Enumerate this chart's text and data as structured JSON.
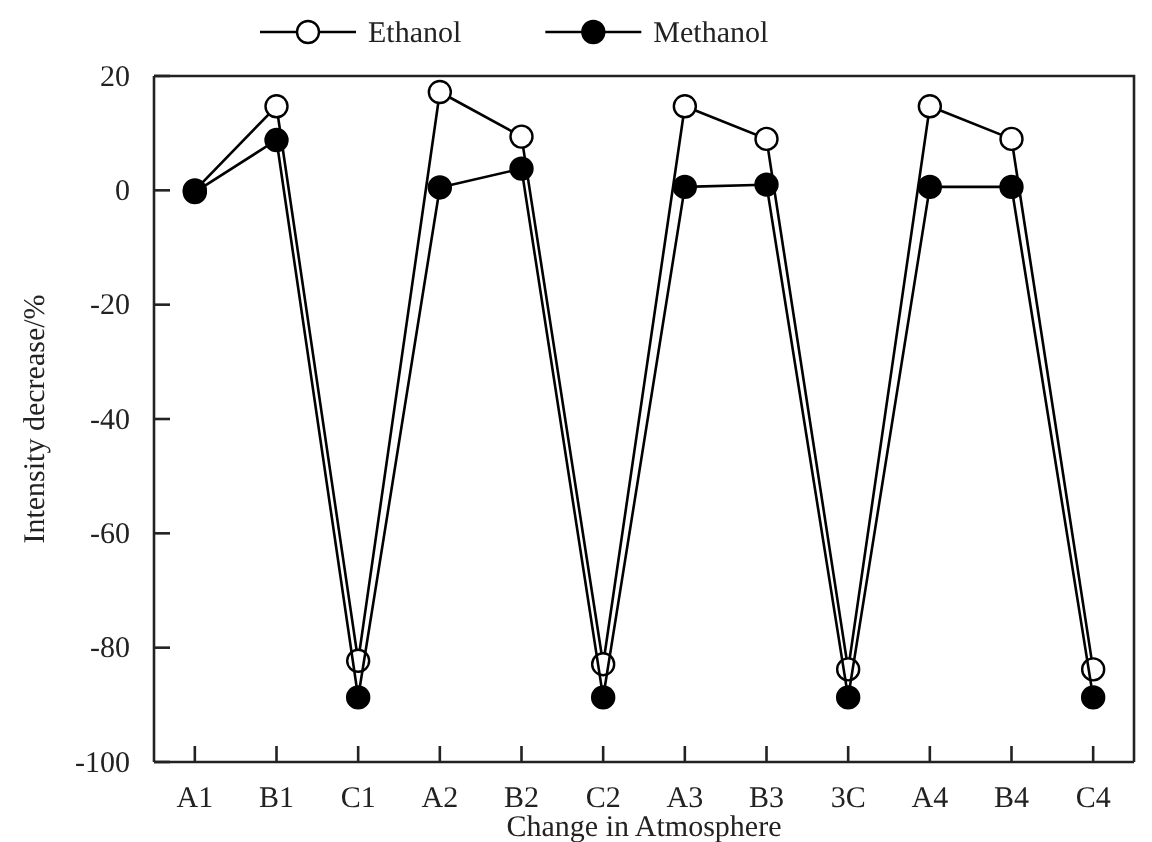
{
  "chart_data": {
    "type": "line",
    "xlabel": "Change in Atmosphere",
    "ylabel": "Intensity decrease/%",
    "categories": [
      "A1",
      "B1",
      "C1",
      "A2",
      "B2",
      "C2",
      "A3",
      "B3",
      "3C",
      "A4",
      "B4",
      "C4"
    ],
    "series": [
      {
        "name": "Ethanol",
        "color": "#000000",
        "values": [
          0,
          14.7,
          -82.3,
          17.2,
          9.4,
          -82.9,
          14.7,
          9,
          -83.8,
          14.7,
          9,
          -83.8
        ]
      },
      {
        "name": "Methanol",
        "color": "#000000",
        "values": [
          -0.3,
          8.8,
          -88.7,
          0.5,
          3.8,
          -88.7,
          0.6,
          1,
          -88.7,
          0.6,
          0.6,
          -88.7
        ]
      }
    ],
    "ylim": [
      -100,
      20
    ],
    "yticks": [
      -100,
      -80,
      -60,
      -40,
      -20,
      0,
      20
    ],
    "grid": false,
    "legend": "top",
    "marker": "circle",
    "line_style": "solid"
  }
}
